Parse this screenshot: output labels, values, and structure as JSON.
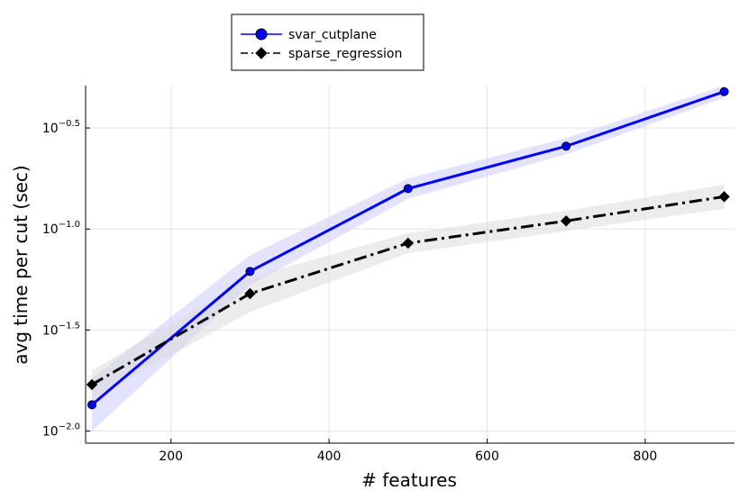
{
  "chart_data": {
    "type": "line",
    "title": "",
    "xlabel": "# features",
    "ylabel": "avg time per cut (sec)",
    "x": [
      100,
      300,
      500,
      700,
      900
    ],
    "xlim": [
      92,
      913
    ],
    "ylim": [
      -2.06,
      -0.29
    ],
    "y_scale": "log10",
    "x_ticks": [
      200,
      400,
      600,
      800
    ],
    "y_ticks": [
      {
        "exp": -2.0,
        "base": "10",
        "power": "−2.0"
      },
      {
        "exp": -1.5,
        "base": "10",
        "power": "−1.5"
      },
      {
        "exp": -1.0,
        "base": "10",
        "power": "−1.0"
      },
      {
        "exp": -0.5,
        "base": "10",
        "power": "−0.5"
      }
    ],
    "grid": true,
    "legend_position": "top-left (outside plot)",
    "series": [
      {
        "name": "svar_cutplane",
        "color": "#0000ff",
        "band_color": "#ccccff",
        "marker": "circle",
        "line_style": "solid",
        "log10_values": [
          -1.87,
          -1.21,
          -0.8,
          -0.59,
          -0.32
        ],
        "band_lower": [
          -2.0,
          -1.28,
          -0.85,
          -0.63,
          -0.35
        ],
        "band_upper": [
          -1.74,
          -1.13,
          -0.75,
          -0.55,
          -0.29
        ]
      },
      {
        "name": "sparse_regression",
        "color": "#000000",
        "band_color": "#dddddd",
        "marker": "diamond",
        "line_style": "dashdot",
        "log10_values": [
          -1.77,
          -1.32,
          -1.07,
          -0.96,
          -0.84
        ],
        "band_lower": [
          -1.84,
          -1.41,
          -1.12,
          -1.01,
          -0.9
        ],
        "band_upper": [
          -1.7,
          -1.24,
          -1.02,
          -0.91,
          -0.78
        ]
      }
    ]
  }
}
